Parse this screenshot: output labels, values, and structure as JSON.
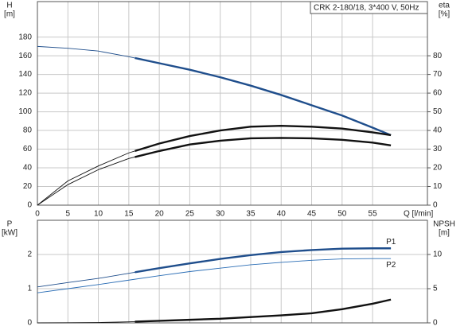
{
  "chart_data": [
    {
      "type": "line",
      "title": "CRK 2-180/18, 3*400 V, 50Hz",
      "ylabel": [
        "H",
        "[m]"
      ],
      "y2label": [
        "eta",
        "[%]"
      ],
      "xlabel": "Q [l/min]",
      "x": [
        0,
        5,
        10,
        15,
        20,
        25,
        30,
        35,
        40,
        45,
        50,
        55,
        58
      ],
      "xlim": [
        0,
        64
      ],
      "xticks": [
        0,
        5,
        10,
        15,
        20,
        25,
        30,
        35,
        40,
        45,
        50,
        55
      ],
      "show_xtick_labels": true,
      "ylim": [
        0,
        218
      ],
      "yticks": [
        0,
        20,
        40,
        60,
        80,
        100,
        120,
        140,
        160,
        180
      ],
      "y2lim": [
        0,
        109
      ],
      "y2ticks": [
        0,
        10,
        20,
        30,
        40,
        50,
        60,
        70,
        80
      ],
      "grid": true,
      "operating_range": [
        16,
        58
      ],
      "series": [
        {
          "color": "#1f4e8c",
          "values": [
            170,
            168,
            165,
            159,
            152,
            145,
            137,
            128,
            118,
            107,
            96,
            83,
            75
          ]
        },
        {
          "color": "#111111",
          "axis": "y2",
          "values": [
            0,
            13,
            21,
            28,
            33,
            37,
            40,
            42,
            42.5,
            42,
            41,
            39,
            37.5
          ]
        },
        {
          "color": "#111111",
          "axis": "y2",
          "values": [
            0,
            11,
            19,
            25,
            29,
            32.5,
            34.5,
            35.8,
            36,
            35.8,
            35,
            33.5,
            32
          ]
        }
      ]
    },
    {
      "type": "line",
      "ylabel": [
        "P",
        "[kW]"
      ],
      "y2label": [
        "NPSH",
        "[m]"
      ],
      "x": [
        0,
        5,
        10,
        15,
        20,
        25,
        30,
        35,
        40,
        45,
        50,
        55,
        58
      ],
      "xlim": [
        0,
        64
      ],
      "xticks": [
        0,
        5,
        10,
        15,
        20,
        25,
        30,
        35,
        40,
        45,
        50,
        55
      ],
      "show_xtick_labels": false,
      "ylim": [
        0,
        3
      ],
      "yticks": [
        0,
        1,
        2
      ],
      "y2lim": [
        0,
        15
      ],
      "y2ticks": [
        0,
        5,
        10
      ],
      "grid": true,
      "operating_range": [
        16,
        58
      ],
      "series": [
        {
          "name": "P1",
          "color": "#1f4e8c",
          "values": [
            1.05,
            1.18,
            1.3,
            1.45,
            1.6,
            1.74,
            1.87,
            1.98,
            2.07,
            2.13,
            2.17,
            2.18,
            2.18
          ]
        },
        {
          "name": "P2",
          "color": "#2a6db5",
          "thin_only": true,
          "values": [
            0.88,
            1.0,
            1.12,
            1.25,
            1.38,
            1.5,
            1.6,
            1.7,
            1.77,
            1.83,
            1.87,
            1.88,
            1.88
          ]
        },
        {
          "color": "#111111",
          "axis": "y2",
          "values": [
            0,
            0.02,
            0.05,
            0.15,
            0.3,
            0.45,
            0.6,
            0.85,
            1.1,
            1.4,
            2,
            2.8,
            3.4
          ]
        }
      ]
    }
  ]
}
